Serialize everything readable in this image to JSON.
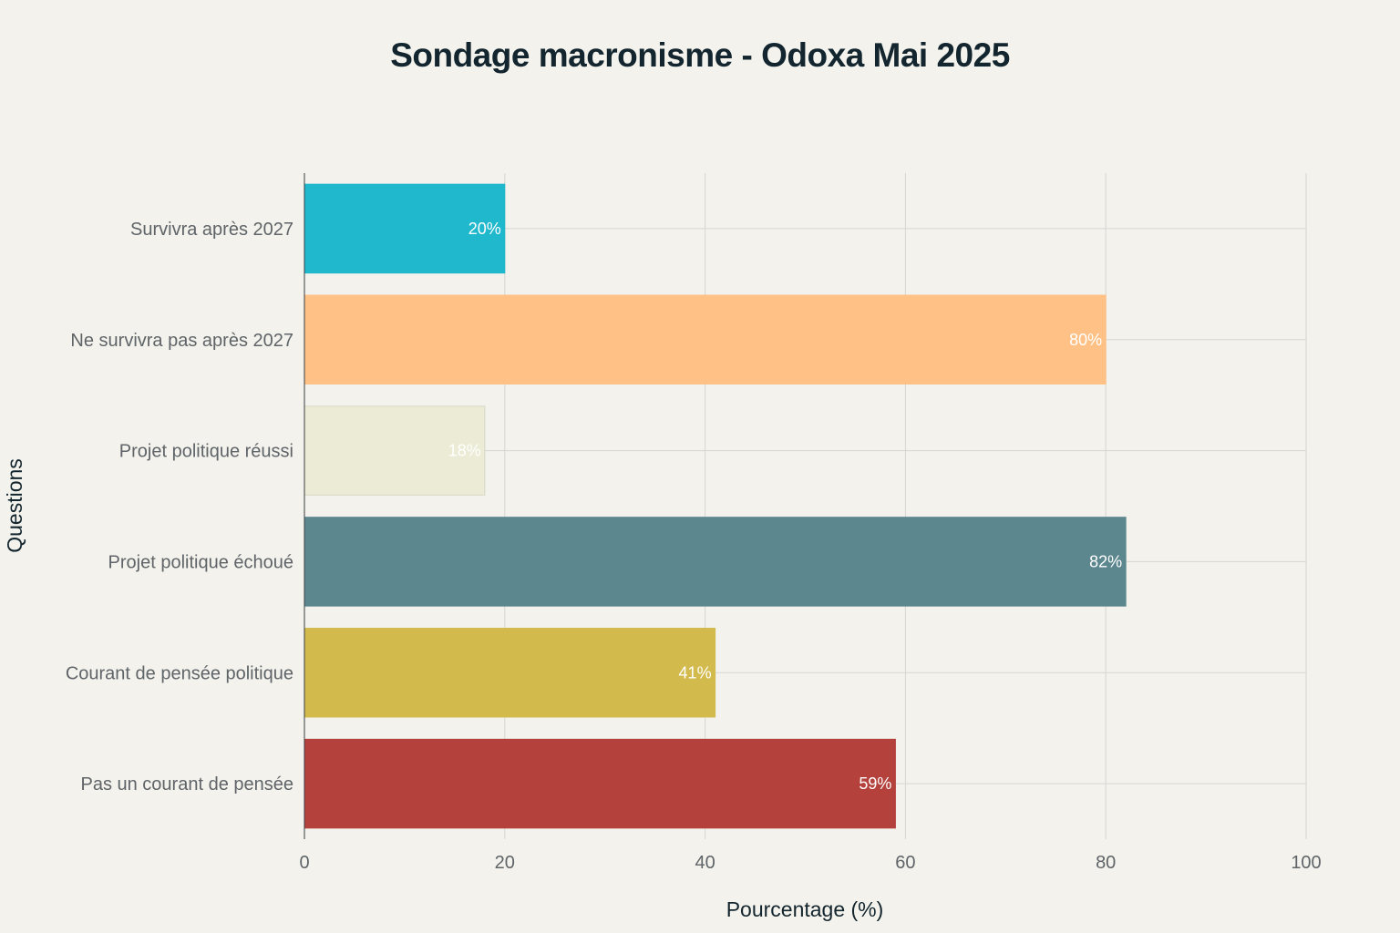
{
  "chart_data": {
    "type": "bar",
    "orientation": "horizontal",
    "title": "Sondage macronisme - Odoxa Mai 2025",
    "xlabel": "Pourcentage (%)",
    "ylabel": "Questions",
    "xlim": [
      0,
      100
    ],
    "xticks": [
      0,
      20,
      40,
      60,
      80,
      100
    ],
    "grid": true,
    "categories": [
      "Survivra après 2027",
      "Ne survivra pas après 2027",
      "Projet politique réussi",
      "Projet politique échoué",
      "Courant de pensée politique",
      "Pas un courant de pensée"
    ],
    "values": [
      20,
      80,
      18,
      82,
      41,
      59
    ],
    "data_labels": [
      "20%",
      "80%",
      "18%",
      "82%",
      "41%",
      "59%"
    ],
    "colors": [
      "#1fb8cd",
      "#ffc185",
      "#eceBd5",
      "#5d878f",
      "#d2ba4c",
      "#b4413c"
    ]
  }
}
